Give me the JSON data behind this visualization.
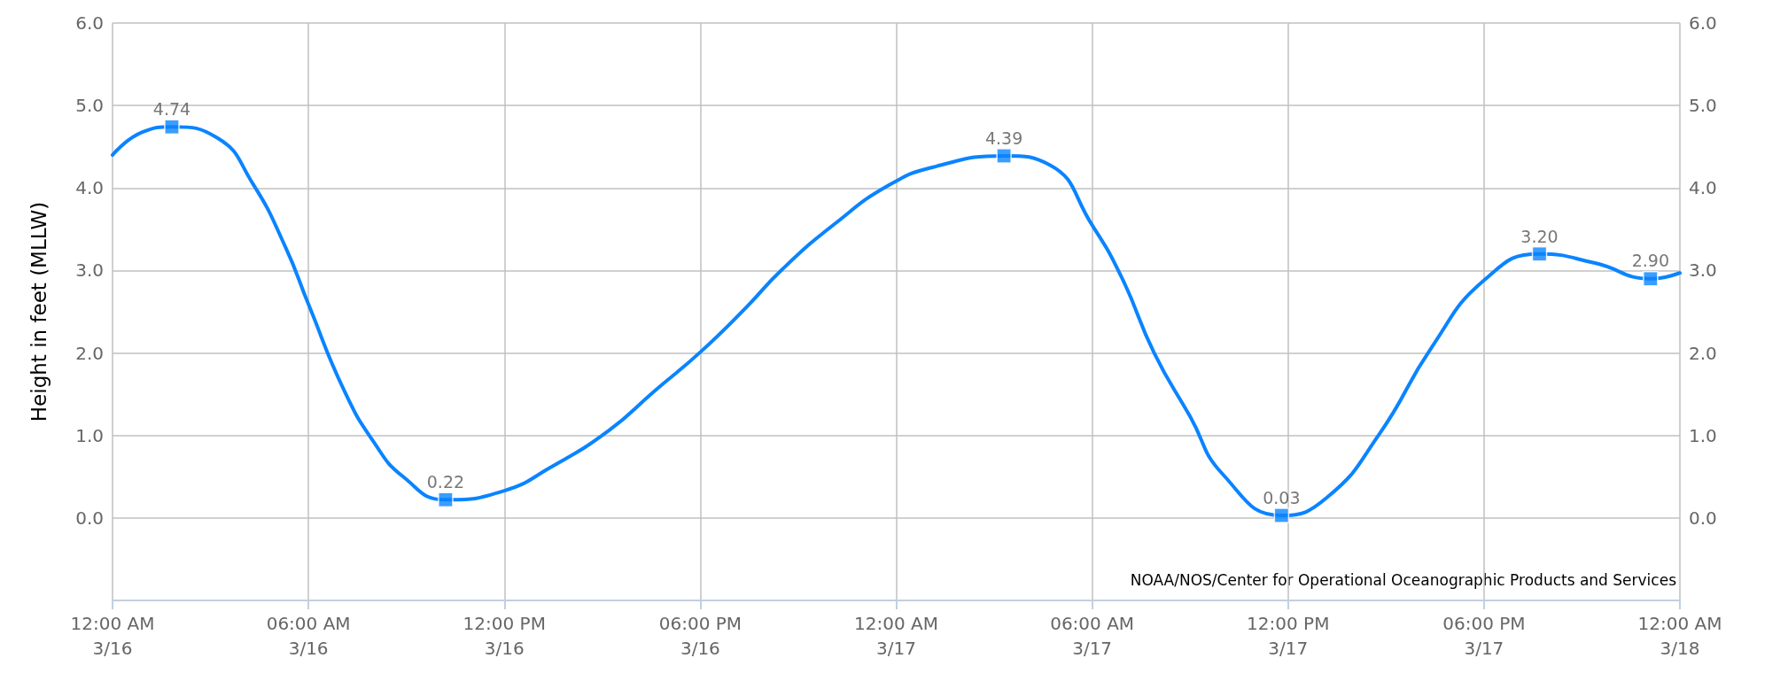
{
  "chart_data": {
    "type": "line",
    "ylabel": "Height in feet (MLLW)",
    "annotations": [
      "NOAA/NOS/Center for Operational Oceanographic Products and Services"
    ],
    "xlim": [
      "--03-16T00:00",
      "--03-18T00:00"
    ],
    "xticks": [
      {
        "value": "--03-16T00:00",
        "label": "12:00 AM\n3/16"
      },
      {
        "value": "--03-16T06:00",
        "label": "06:00 AM\n3/16"
      },
      {
        "value": "--03-16T12:00",
        "label": "12:00 PM\n3/16"
      },
      {
        "value": "--03-16T18:00",
        "label": "06:00 PM\n3/16"
      },
      {
        "value": "--03-17T00:00",
        "label": "12:00 AM\n3/17"
      },
      {
        "value": "--03-17T06:00",
        "label": "06:00 AM\n3/17"
      },
      {
        "value": "--03-17T12:00",
        "label": "12:00 PM\n3/17"
      },
      {
        "value": "--03-17T18:00",
        "label": "06:00 PM\n3/17"
      },
      {
        "value": "--03-18T00:00",
        "label": "12:00 AM\n3/18"
      }
    ],
    "ylim": [
      -1,
      6
    ],
    "yticks": [
      {
        "value": -1,
        "label": null
      },
      {
        "value": 0,
        "label": "0.0"
      },
      {
        "value": 1,
        "label": "1.0"
      },
      {
        "value": 2,
        "label": "2.0"
      },
      {
        "value": 3,
        "label": "3.0"
      },
      {
        "value": 4,
        "label": "4.0"
      },
      {
        "value": 5,
        "label": "5.0"
      },
      {
        "value": 6,
        "label": "6.0"
      }
    ],
    "y2lim": [
      -1,
      6
    ],
    "y2ticks": [
      {
        "value": -1,
        "label": null
      },
      {
        "value": 0,
        "label": "0.0"
      },
      {
        "value": 1,
        "label": "1.0"
      },
      {
        "value": 2,
        "label": "2.0"
      },
      {
        "value": 3,
        "label": "3.0"
      },
      {
        "value": 4,
        "label": "4.0"
      },
      {
        "value": 5,
        "label": "5.0"
      },
      {
        "value": 6,
        "label": "6.0"
      }
    ],
    "grid": true,
    "line_style": "solid",
    "series": [
      {
        "color": "#0a84ff",
        "marker": "none",
        "x": [
          "--03-16T00:00",
          "--03-16T00:56",
          "--03-16T01:49",
          "--03-16T03:12",
          "--03-16T04:18",
          "--03-16T05:18",
          "--03-16T06:00",
          "--03-16T07:06",
          "--03-16T08:00",
          "--03-16T08:54",
          "--03-16T10:12",
          "--03-16T12:00",
          "--03-16T13:24",
          "--03-16T15:12",
          "--03-16T16:36",
          "--03-16T18:00",
          "--03-16T19:24",
          "--03-16T20:30",
          "--03-16T22:06",
          "--03-16T23:48",
          "--03-17T01:12",
          "--03-17T03:18",
          "--03-17T04:42",
          "--03-17T06:00",
          "--03-17T06:54",
          "--03-17T07:54",
          "--03-17T09:00",
          "--03-17T10:00",
          "--03-17T11:48",
          "--03-17T13:12",
          "--03-17T14:48",
          "--03-17T16:24",
          "--03-17T18:00",
          "--03-17T19:42",
          "--03-17T21:24",
          "--03-17T23:06",
          "--03-18T00:00"
        ],
        "values": [
          4.4,
          4.68,
          4.74,
          4.61,
          4.05,
          3.28,
          2.59,
          1.54,
          0.92,
          0.5,
          0.22,
          0.33,
          0.61,
          1.06,
          1.54,
          2.01,
          2.55,
          3.01,
          3.56,
          4.04,
          4.26,
          4.39,
          4.28,
          3.55,
          2.92,
          2.0,
          1.23,
          0.53,
          0.03,
          0.25,
          1.02,
          2.07,
          2.88,
          3.2,
          3.09,
          2.9,
          2.97
        ]
      },
      {
        "type": "scatter",
        "color": "#0a84ff",
        "marker": "square",
        "x": [
          "--03-16T01:49",
          "--03-16T10:12",
          "--03-17T03:18",
          "--03-17T11:48",
          "--03-17T19:42",
          "--03-17T23:06"
        ],
        "values": [
          4.74,
          0.22,
          4.39,
          0.03,
          3.2,
          2.9
        ],
        "value_labels": [
          "4.74",
          "0.22",
          "4.39",
          "0.03",
          "3.20",
          "2.90"
        ]
      }
    ]
  }
}
